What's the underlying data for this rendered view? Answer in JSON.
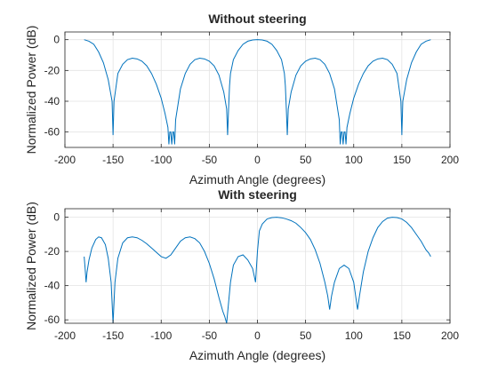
{
  "chart_data": [
    {
      "type": "line",
      "title": "Without steering",
      "xlabel": "Azimuth Angle (degrees)",
      "ylabel": "Normalized Power (dB)",
      "xlim": [
        -200,
        200
      ],
      "ylim": [
        -70,
        5
      ],
      "xticks": [
        -200,
        -150,
        -100,
        -50,
        0,
        50,
        100,
        150,
        200
      ],
      "yticks": [
        0,
        -20,
        -40,
        -60
      ],
      "grid": true,
      "series_color": "#0072BD",
      "series": [
        {
          "x": [
            -180,
            -175,
            -170,
            -165,
            -160,
            -155,
            -151,
            -150,
            -149,
            -145,
            -140,
            -135,
            -130,
            -125,
            -120,
            -115,
            -110,
            -105,
            -100,
            -96,
            -93,
            -92,
            -91,
            -90,
            -89,
            -88,
            -87,
            -86,
            -85,
            -80,
            -75,
            -70,
            -65,
            -60,
            -55,
            -50,
            -45,
            -40,
            -35,
            -32,
            -31,
            -30,
            -29,
            -28,
            -25,
            -20,
            -15,
            -10,
            -5,
            0,
            5,
            10,
            15,
            20,
            25,
            28,
            29,
            30,
            31,
            32,
            35,
            40,
            45,
            50,
            55,
            60,
            65,
            70,
            75,
            80,
            85,
            86,
            87,
            88,
            89,
            90,
            91,
            92,
            93,
            96,
            100,
            105,
            110,
            115,
            120,
            125,
            130,
            135,
            140,
            145,
            149,
            150,
            151,
            155,
            160,
            165,
            170,
            175,
            180
          ],
          "y": [
            0,
            -1,
            -3,
            -8,
            -15,
            -26,
            -40,
            -62,
            -40,
            -22,
            -16,
            -13,
            -12,
            -12.5,
            -14,
            -17,
            -22,
            -29,
            -38,
            -48,
            -57,
            -68,
            -60,
            -60,
            -68,
            -60,
            -60,
            -68,
            -52,
            -32,
            -22,
            -16,
            -13,
            -12,
            -12.5,
            -14,
            -17,
            -23,
            -34,
            -45,
            -62,
            -45,
            -30,
            -22,
            -13,
            -7,
            -3,
            -1,
            -0.2,
            0,
            -0.2,
            -1,
            -3,
            -7,
            -13,
            -22,
            -30,
            -45,
            -62,
            -45,
            -34,
            -23,
            -17,
            -14,
            -12.5,
            -12,
            -13,
            -16,
            -22,
            -32,
            -52,
            -68,
            -60,
            -60,
            -68,
            -60,
            -60,
            -68,
            -57,
            -48,
            -38,
            -29,
            -22,
            -17,
            -14,
            -12.5,
            -12,
            -13,
            -16,
            -22,
            -40,
            -62,
            -40,
            -26,
            -15,
            -8,
            -3,
            -1,
            0
          ]
        }
      ]
    },
    {
      "type": "line",
      "title": "With steering",
      "xlabel": "Azimuth Angle (degrees)",
      "ylabel": "Normalized Power (dB)",
      "xlim": [
        -200,
        200
      ],
      "ylim": [
        -62,
        5
      ],
      "xticks": [
        -200,
        -150,
        -100,
        -50,
        0,
        50,
        100,
        150,
        200
      ],
      "yticks": [
        0,
        -20,
        -40,
        -60
      ],
      "grid": true,
      "series_color": "#0072BD",
      "series": [
        {
          "x": [
            -180,
            -179,
            -178,
            -177,
            -175,
            -172,
            -168,
            -165,
            -162,
            -158,
            -155,
            -152,
            -150,
            -148,
            -145,
            -140,
            -135,
            -130,
            -125,
            -120,
            -115,
            -110,
            -105,
            -100,
            -95,
            -90,
            -85,
            -80,
            -75,
            -70,
            -65,
            -60,
            -55,
            -50,
            -45,
            -40,
            -36,
            -34,
            -32,
            -30,
            -28,
            -25,
            -20,
            -15,
            -10,
            -5,
            -2,
            0,
            2,
            5,
            10,
            15,
            20,
            25,
            30,
            35,
            40,
            45,
            50,
            55,
            60,
            65,
            70,
            73,
            75,
            77,
            80,
            85,
            90,
            95,
            100,
            102,
            104,
            106,
            110,
            115,
            120,
            125,
            130,
            135,
            140,
            145,
            150,
            155,
            160,
            165,
            170,
            175,
            178,
            180
          ],
          "y": [
            -23,
            -30,
            -38,
            -32,
            -25,
            -18,
            -13,
            -11.5,
            -12,
            -16,
            -24,
            -38,
            -62,
            -38,
            -24,
            -15,
            -12,
            -11.5,
            -12,
            -13.5,
            -15.5,
            -18,
            -20.5,
            -23,
            -24,
            -22,
            -18,
            -14,
            -12,
            -11.5,
            -12.5,
            -15,
            -20,
            -27,
            -36,
            -47,
            -55,
            -58,
            -62,
            -50,
            -38,
            -28,
            -23,
            -22,
            -25,
            -30,
            -38,
            -20,
            -8,
            -4,
            -1,
            -0.2,
            0,
            -0.3,
            -1,
            -2,
            -3.5,
            -6,
            -9,
            -13,
            -19,
            -27,
            -38,
            -46,
            -54,
            -46,
            -38,
            -30,
            -28,
            -30,
            -38,
            -46,
            -54,
            -46,
            -32,
            -20,
            -12,
            -6,
            -2.5,
            -0.5,
            0,
            -0.2,
            -1,
            -3,
            -6,
            -10,
            -14,
            -19,
            -21,
            -23
          ]
        }
      ]
    }
  ]
}
